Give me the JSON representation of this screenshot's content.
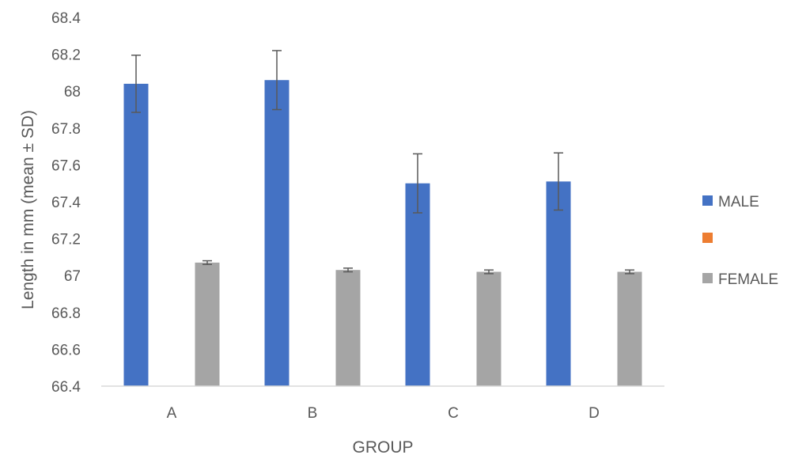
{
  "chart_data": {
    "type": "bar",
    "categories": [
      "A",
      "B",
      "C",
      "D"
    ],
    "series": [
      {
        "name": "MALE",
        "color": "#4472C4",
        "values": [
          68.04,
          68.06,
          67.5,
          67.51
        ],
        "error": [
          0.155,
          0.16,
          0.16,
          0.155
        ]
      },
      {
        "name": "",
        "color": "#ED7D31",
        "values": [
          null,
          null,
          null,
          null
        ],
        "error": [
          null,
          null,
          null,
          null
        ]
      },
      {
        "name": "FEMALE",
        "color": "#A5A5A5",
        "values": [
          67.07,
          67.03,
          67.02,
          67.02
        ],
        "error": [
          0.01,
          0.01,
          0.01,
          0.01
        ]
      }
    ],
    "xlabel": "GROUP",
    "ylabel": "Length in mm (mean ± SD)",
    "ylim": [
      66.4,
      68.4
    ],
    "yticks": [
      "68.4",
      "68.2",
      "68",
      "67.8",
      "67.6",
      "67.4",
      "67.2",
      "67",
      "66.8",
      "66.6",
      "66.4"
    ],
    "ytick_values": [
      68.4,
      68.2,
      68.0,
      67.8,
      67.6,
      67.4,
      67.2,
      67.0,
      66.8,
      66.6,
      66.4
    ],
    "grid": false,
    "legend_position": "right",
    "error_bar_color": "#595959",
    "axis_color": "#D9D9D9"
  }
}
